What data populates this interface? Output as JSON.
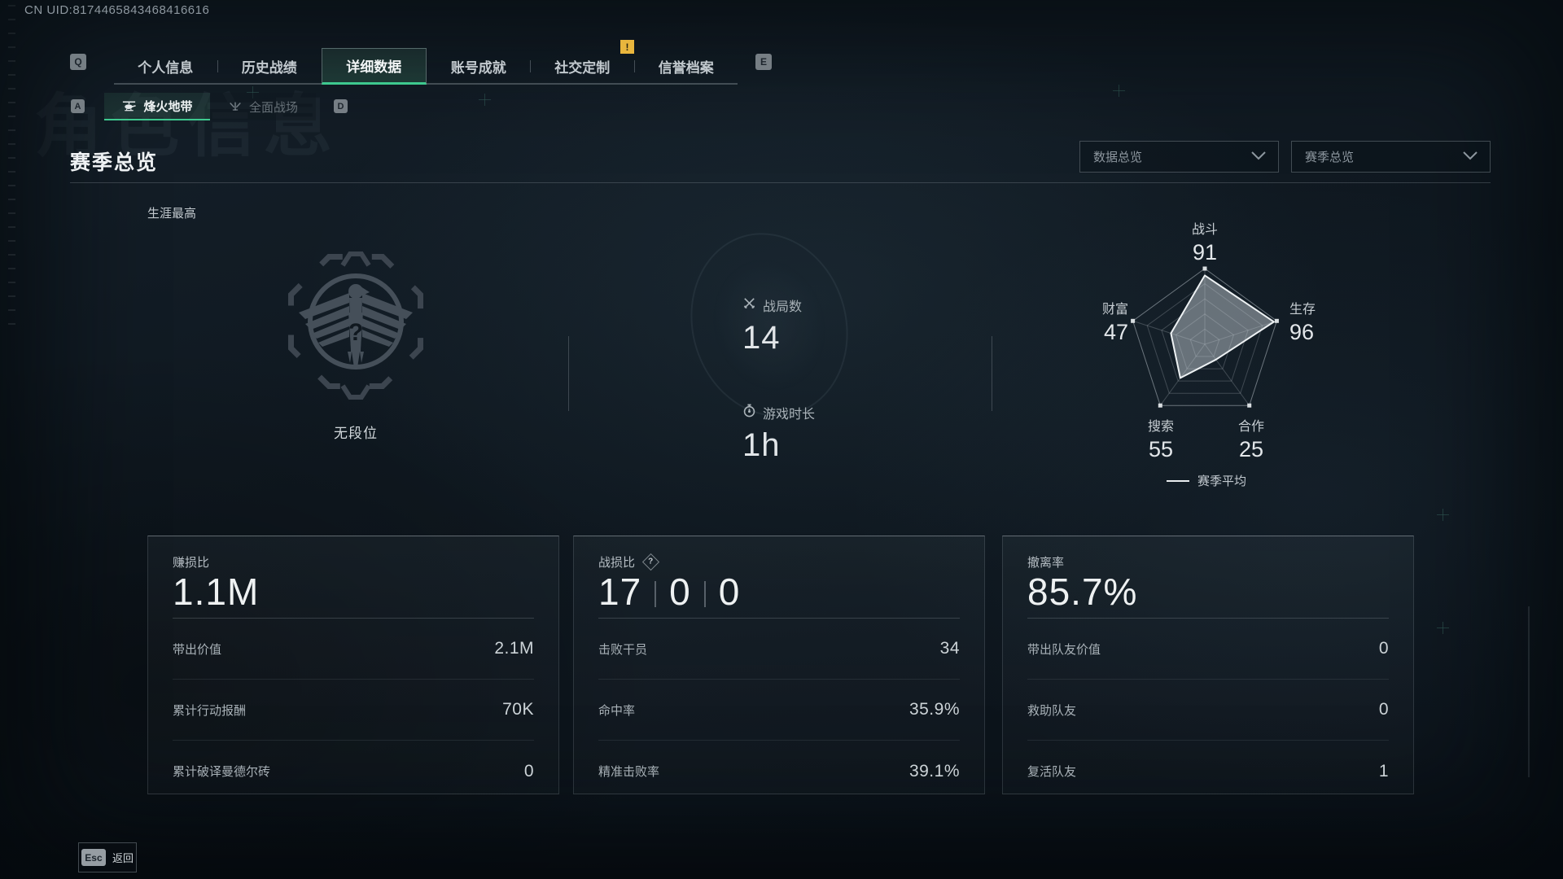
{
  "uid": "CN UID:8174465843468416616",
  "watermark": "角色信息",
  "colors": {
    "accent_green": "#3ec98f",
    "alert_yellow": "#e9b63d"
  },
  "key_hints": {
    "tabs_left": "Q",
    "tabs_right": "E",
    "subtabs_left": "A",
    "subtabs_right": "D"
  },
  "tabs": {
    "items": [
      {
        "label": "个人信息"
      },
      {
        "label": "历史战绩"
      },
      {
        "label": "详细数据"
      },
      {
        "label": "账号成就"
      },
      {
        "label": "社交定制"
      },
      {
        "label": "信誉档案"
      }
    ],
    "active_index": 2,
    "alert_symbol": "!"
  },
  "subtabs": {
    "items": [
      {
        "label": "烽火地带",
        "icon": "helicopter-icon"
      },
      {
        "label": "全面战场",
        "icon": "jet-icon"
      }
    ],
    "active_index": 0
  },
  "page": {
    "title": "赛季总览",
    "career_best_label": "生涯最高"
  },
  "filters": {
    "data_scope": {
      "value": "数据总览",
      "icon": "chevron-down-icon"
    },
    "season_scope": {
      "value": "赛季总览",
      "icon": "chevron-down-icon"
    }
  },
  "rank": {
    "emblem": "eagle-badge-icon",
    "label": "无段位"
  },
  "summary_stats": [
    {
      "icon": "crossed-swords-icon",
      "label": "战局数",
      "value": "14"
    },
    {
      "icon": "stopwatch-icon",
      "label": "游戏时长",
      "value": "1h"
    }
  ],
  "chart_data": {
    "type": "radar",
    "categories": [
      "战斗",
      "生存",
      "合作",
      "搜索",
      "财富"
    ],
    "series": [
      {
        "name": "赛季平均",
        "values": [
          91,
          96,
          25,
          55,
          47
        ]
      }
    ],
    "max": 100,
    "rings": 5,
    "grid": true,
    "legend": "赛季平均",
    "legend_position": "bottom"
  },
  "cards": [
    {
      "title": "赚损比",
      "value": "1.1M",
      "rows": [
        {
          "label": "带出价值",
          "value": "2.1M"
        },
        {
          "label": "累计行动报酬",
          "value": "70K"
        },
        {
          "label": "累计破译曼德尔砖",
          "value": "0"
        }
      ]
    },
    {
      "title": "战损比",
      "help_symbol": "?",
      "value_parts": [
        "17",
        "0",
        "0"
      ],
      "rows": [
        {
          "label": "击败干员",
          "value": "34"
        },
        {
          "label": "命中率",
          "value": "35.9%"
        },
        {
          "label": "精准击败率",
          "value": "39.1%"
        }
      ]
    },
    {
      "title": "撤离率",
      "value": "85.7%",
      "rows": [
        {
          "label": "带出队友价值",
          "value": "0"
        },
        {
          "label": "救助队友",
          "value": "0"
        },
        {
          "label": "复活队友",
          "value": "1"
        }
      ]
    }
  ],
  "footer": {
    "key": "Esc",
    "label": "返回"
  }
}
